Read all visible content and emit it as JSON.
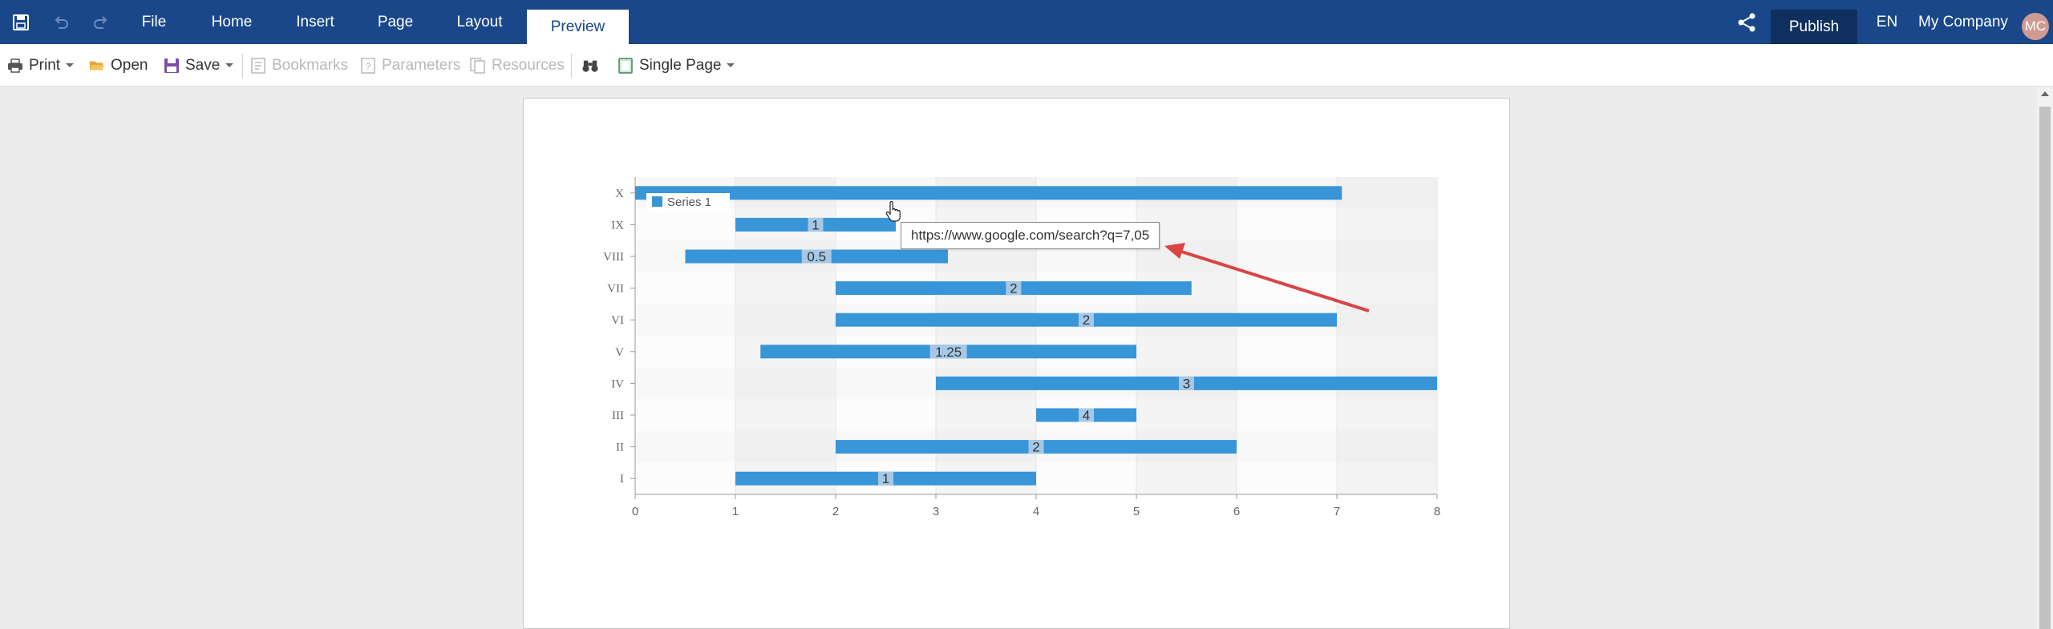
{
  "topbar": {
    "tabs": [
      {
        "label": "File",
        "active": false
      },
      {
        "label": "Home",
        "active": false
      },
      {
        "label": "Insert",
        "active": false
      },
      {
        "label": "Page",
        "active": false
      },
      {
        "label": "Layout",
        "active": false
      },
      {
        "label": "Preview",
        "active": true
      }
    ],
    "publish_label": "Publish",
    "language": "EN",
    "company": "My Company",
    "avatar_initials": "MC",
    "icons": [
      "save-icon",
      "undo-icon",
      "redo-icon",
      "share-icon"
    ]
  },
  "toolbar": {
    "print_label": "Print",
    "open_label": "Open",
    "save_label": "Save",
    "bookmarks_label": "Bookmarks",
    "parameters_label": "Parameters",
    "resources_label": "Resources",
    "view_mode_label": "Single Page"
  },
  "tooltip": {
    "text": "https://www.google.com/search?q=7,05"
  },
  "colors": {
    "header": "#19478a",
    "publish": "#0f2f5e",
    "bar": "#3895d8",
    "arrow": "#d94444"
  },
  "chart_data": {
    "type": "bar",
    "orientation": "horizontal",
    "subtype": "range",
    "categories": [
      "I",
      "II",
      "III",
      "IV",
      "V",
      "VI",
      "VII",
      "VIII",
      "IX",
      "X"
    ],
    "series": [
      {
        "name": "Series 1",
        "start": [
          1,
          2,
          4,
          3,
          1.25,
          2,
          2,
          0.5,
          1,
          0
        ],
        "end": [
          4,
          6,
          5,
          8,
          5,
          7,
          5.55,
          3.12,
          2.6,
          7.05
        ],
        "labels": [
          "1",
          "2",
          "4",
          "3",
          "1.25",
          "2",
          "2",
          "0.5",
          "1",
          ""
        ]
      }
    ],
    "xlim": [
      0,
      8
    ],
    "x_ticks": [
      "0",
      "1",
      "2",
      "3",
      "4",
      "5",
      "6",
      "7",
      "8"
    ],
    "grid": true,
    "legend": "top-left"
  }
}
